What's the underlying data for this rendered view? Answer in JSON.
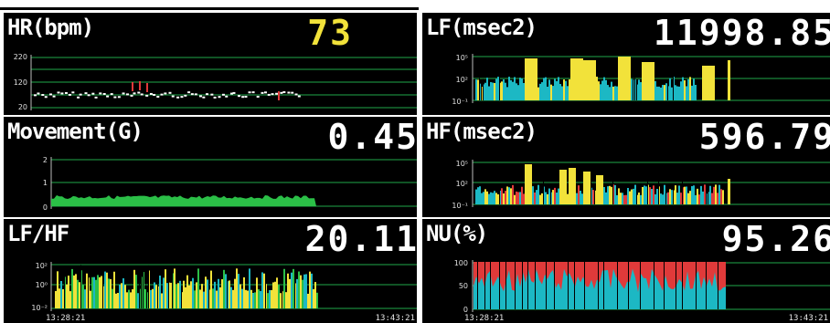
{
  "panels": [
    {
      "id": "hr",
      "title": "HR(bpm)",
      "value": "73",
      "value_color": "#f2e23a",
      "yticks": [
        "220",
        "120",
        "20"
      ],
      "times": {
        "start": "",
        "end": ""
      }
    },
    {
      "id": "lf",
      "title": "LF(msec2)",
      "value": "11998.85",
      "value_color": "#ffffff",
      "yticks": [
        "10⁵",
        "10²",
        "10⁻¹"
      ],
      "times": {
        "start": "",
        "end": ""
      }
    },
    {
      "id": "movement",
      "title": "Movement(G)",
      "value": "0.45",
      "value_color": "#ffffff",
      "yticks": [
        "2",
        "1",
        "0"
      ],
      "times": {
        "start": "",
        "end": ""
      }
    },
    {
      "id": "hf",
      "title": "HF(msec2)",
      "value": "596.79",
      "value_color": "#ffffff",
      "yticks": [
        "10⁵",
        "10²",
        "10⁻¹"
      ],
      "times": {
        "start": "",
        "end": ""
      }
    },
    {
      "id": "lfhf",
      "title": "LF/HF",
      "value": "20.11",
      "value_color": "#ffffff",
      "yticks": [
        "10²",
        "10⁰",
        "10⁻²"
      ],
      "times": {
        "start": "13:28:21",
        "end": "13:43:21"
      }
    },
    {
      "id": "nu",
      "title": "NU(%)",
      "value": "95.26",
      "value_color": "#ffffff",
      "yticks": [
        "100",
        "50",
        "0"
      ],
      "times": {
        "start": "13:28:21",
        "end": "13:43:21"
      }
    }
  ],
  "colors": {
    "grid": "#1fa84a",
    "yellow": "#f2e23a",
    "cyan": "#1cb8c4",
    "red": "#e03a3a",
    "green": "#2bbf47",
    "white": "#ffffff"
  }
}
